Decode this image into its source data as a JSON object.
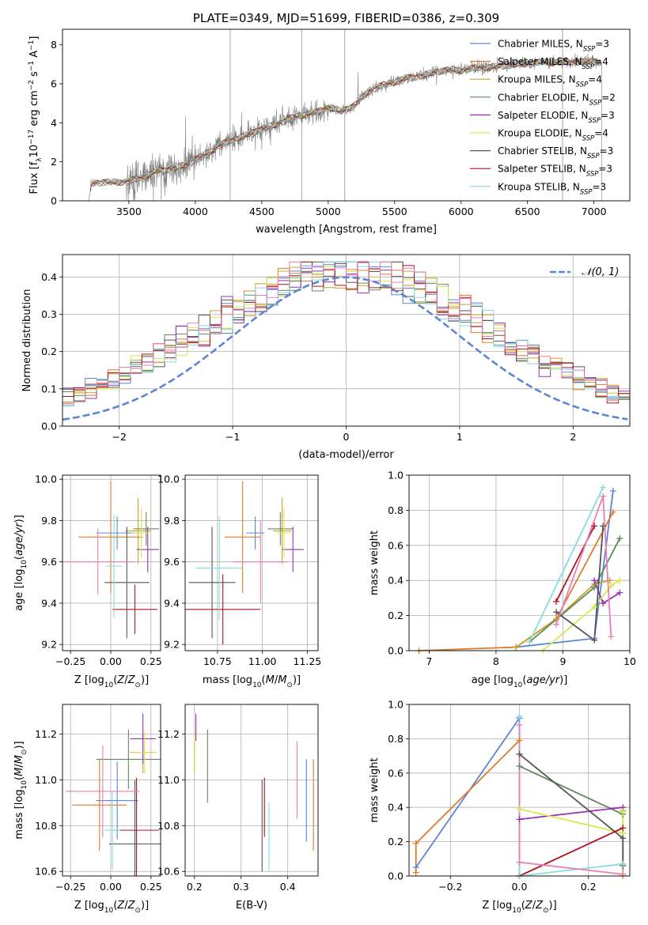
{
  "colors": {
    "Chabrier MILES": "#5b86d6",
    "Salpeter MILES": "#e07b29",
    "Kroupa MILES": "#c9a227",
    "Chabrier ELODIE": "#5e8a5e",
    "Salpeter ELODIE": "#9b2fb0",
    "Kroupa ELODIE": "#d8e650",
    "Chabrier STELIB": "#555555",
    "Salpeter STELIB": "#b0141c",
    "Kroupa STELIB": "#86dce0",
    "pink": "#e77fb5",
    "gauss": "#5b86d6"
  },
  "chart_data": [
    {
      "id": "spectrum",
      "type": "line",
      "title": "PLATE=0349, MJD=51699, FIBERID=0386, z=0.309",
      "xlabel": "wavelength [Angstrom, rest frame]",
      "ylabel": "Flux [f_λ 10^-17 erg cm^-2 s^-1 A^-1]",
      "xlim": [
        3000,
        7270
      ],
      "ylim": [
        0,
        8.8
      ],
      "xticks": [
        3500,
        4000,
        4500,
        5000,
        5500,
        6000,
        6500,
        7000
      ],
      "yticks": [
        0,
        2,
        4,
        6,
        8
      ],
      "data_anchor": [
        [
          3200,
          0.0
        ],
        [
          3215,
          0.9
        ],
        [
          3300,
          0.95
        ],
        [
          3400,
          0.95
        ],
        [
          3500,
          1.0
        ],
        [
          3600,
          1.2
        ],
        [
          3700,
          1.5
        ],
        [
          3800,
          1.6
        ],
        [
          3900,
          1.8
        ],
        [
          3950,
          1.9
        ],
        [
          4000,
          2.1
        ],
        [
          4100,
          2.5
        ],
        [
          4200,
          2.9
        ],
        [
          4300,
          3.2
        ],
        [
          4400,
          3.4
        ],
        [
          4500,
          3.7
        ],
        [
          4600,
          3.9
        ],
        [
          4700,
          4.2
        ],
        [
          4800,
          4.4
        ],
        [
          4900,
          4.5
        ],
        [
          5000,
          4.8
        ],
        [
          5100,
          4.6
        ],
        [
          5200,
          4.9
        ],
        [
          5300,
          5.6
        ],
        [
          5400,
          5.9
        ],
        [
          5500,
          6.1
        ],
        [
          5600,
          6.3
        ],
        [
          5700,
          6.4
        ],
        [
          5800,
          6.6
        ],
        [
          5900,
          6.7
        ],
        [
          6000,
          6.7
        ],
        [
          6100,
          6.8
        ],
        [
          6200,
          6.85
        ],
        [
          6300,
          6.9
        ],
        [
          6400,
          7.0
        ],
        [
          6500,
          7.05
        ],
        [
          6600,
          7.1
        ],
        [
          6700,
          7.1
        ],
        [
          6800,
          7.1
        ],
        [
          6900,
          7.15
        ],
        [
          7000,
          7.15
        ],
        [
          7060,
          7.1
        ],
        [
          7060,
          0.0
        ]
      ],
      "legend": [
        {
          "name": "Chabrier MILES, N",
          "sub": "SSP",
          "tail": "=3",
          "color": "#5b86d6"
        },
        {
          "name": "Salpeter MILES, N",
          "sub": "SSP",
          "tail": "=4",
          "color": "#e07b29"
        },
        {
          "name": "Kroupa MILES, N",
          "sub": "SSP",
          "tail": "=4",
          "color": "#c9a227"
        },
        {
          "name": "Chabrier ELODIE, N",
          "sub": "SSP",
          "tail": "=2",
          "color": "#5e8a5e"
        },
        {
          "name": "Salpeter ELODIE, N",
          "sub": "SSP",
          "tail": "=3",
          "color": "#9b2fb0"
        },
        {
          "name": "Kroupa ELODIE, N",
          "sub": "SSP",
          "tail": "=4",
          "color": "#d8e650"
        },
        {
          "name": "Chabrier STELIB, N",
          "sub": "SSP",
          "tail": "=3",
          "color": "#555555"
        },
        {
          "name": "Salpeter STELIB, N",
          "sub": "SSP",
          "tail": "=3",
          "color": "#b0141c"
        },
        {
          "name": "Kroupa STELIB, N",
          "sub": "SSP",
          "tail": "=3",
          "color": "#86dce0"
        }
      ],
      "legend_loc": "right"
    },
    {
      "id": "residuals",
      "type": "line",
      "xlabel": "(data-model)/error",
      "ylabel": "Normed distribution",
      "xlim": [
        -2.5,
        2.5
      ],
      "ylim": [
        0,
        0.46
      ],
      "xticks": [
        -2,
        -1,
        0,
        1,
        2
      ],
      "yticks": [
        0.0,
        0.1,
        0.2,
        0.3,
        0.4
      ],
      "grid": true,
      "bins": 50,
      "legend": [
        {
          "name": "𝒩(0, 1)",
          "color": "#5b86d6",
          "dashed": true
        }
      ],
      "legend_loc": "top-right"
    },
    {
      "id": "age_vs_Z",
      "type": "scatter",
      "xlabel": "Z [log10(Z/Z⊙)]",
      "ylabel": "age [log10(age/yr)]",
      "xlim": [
        -0.3,
        0.31
      ],
      "ylim": [
        9.17,
        10.02
      ],
      "xticks": [
        -0.25,
        0.0,
        0.25
      ],
      "yticks": [
        9.2,
        9.4,
        9.6,
        9.8,
        10.0
      ],
      "grid": true,
      "points": [
        {
          "x": 0.04,
          "y": 9.74,
          "xerr": 0.13,
          "yerr": 0.08,
          "color": "#5b86d6"
        },
        {
          "x": 0.0,
          "y": 9.72,
          "xerr": 0.2,
          "yerr": 0.27,
          "color": "#e07b29"
        },
        {
          "x": 0.17,
          "y": 9.75,
          "xerr": 0.08,
          "yerr": 0.16,
          "color": "#c9a227"
        },
        {
          "x": 0.22,
          "y": 9.76,
          "xerr": 0.08,
          "yerr": 0.08,
          "color": "#5e8a5e"
        },
        {
          "x": 0.23,
          "y": 9.66,
          "xerr": 0.07,
          "yerr": 0.11,
          "color": "#9b2fb0"
        },
        {
          "x": 0.19,
          "y": 9.74,
          "xerr": 0.06,
          "yerr": 0.12,
          "color": "#d8e650"
        },
        {
          "x": 0.1,
          "y": 9.5,
          "xerr": 0.14,
          "yerr": 0.27,
          "color": "#555555"
        },
        {
          "x": 0.15,
          "y": 9.37,
          "xerr": 0.14,
          "yerr": 0.12,
          "color": "#b0141c"
        },
        {
          "x": 0.02,
          "y": 9.58,
          "xerr": 0.05,
          "yerr": 0.25,
          "color": "#86dce0"
        },
        {
          "x": -0.08,
          "y": 9.6,
          "xerr": 0.23,
          "yerr": 0.16,
          "color": "#e77fb5"
        }
      ]
    },
    {
      "id": "age_vs_mass",
      "type": "scatter",
      "xlabel": "mass [log10(M/M⊙)]",
      "ylabel": "",
      "xlim": [
        10.57,
        11.31
      ],
      "ylim": [
        9.17,
        10.02
      ],
      "xticks": [
        10.75,
        11.0,
        11.25
      ],
      "yticks": [
        9.2,
        9.4,
        9.6,
        9.8,
        10.0
      ],
      "grid": true,
      "points": [
        {
          "x": 10.96,
          "y": 9.74,
          "xerr": 0.05,
          "yerr": 0.08,
          "color": "#5b86d6"
        },
        {
          "x": 10.89,
          "y": 9.72,
          "xerr": 0.1,
          "yerr": 0.27,
          "color": "#e07b29"
        },
        {
          "x": 11.11,
          "y": 9.75,
          "xerr": 0.05,
          "yerr": 0.16,
          "color": "#c9a227"
        },
        {
          "x": 11.1,
          "y": 9.76,
          "xerr": 0.07,
          "yerr": 0.08,
          "color": "#5e8a5e"
        },
        {
          "x": 11.17,
          "y": 9.66,
          "xerr": 0.06,
          "yerr": 0.11,
          "color": "#9b2fb0"
        },
        {
          "x": 11.12,
          "y": 9.74,
          "xerr": 0.04,
          "yerr": 0.12,
          "color": "#d8e650"
        },
        {
          "x": 10.72,
          "y": 9.5,
          "xerr": 0.13,
          "yerr": 0.27,
          "color": "#555555"
        },
        {
          "x": 10.78,
          "y": 9.37,
          "xerr": 0.21,
          "yerr": 0.17,
          "color": "#b0141c"
        },
        {
          "x": 10.76,
          "y": 9.57,
          "xerr": 0.13,
          "yerr": 0.25,
          "color": "#86dce0"
        },
        {
          "x": 10.99,
          "y": 9.6,
          "xerr": 0.15,
          "yerr": 0.2,
          "color": "#e77fb5"
        }
      ]
    },
    {
      "id": "mass_weight_vs_age",
      "type": "line",
      "xlabel": "age [log10(age/yr)]",
      "ylabel": "mass weight",
      "xlim": [
        6.7,
        10.0
      ],
      "ylim": [
        0.0,
        1.0
      ],
      "xticks": [
        7,
        8,
        9,
        10
      ],
      "yticks": [
        0.0,
        0.2,
        0.4,
        0.6,
        0.8,
        1.0
      ],
      "grid": true,
      "series": [
        {
          "color": "#5b86d6",
          "x": [
            8.3,
            9.47,
            9.75
          ],
          "y": [
            0.02,
            0.07,
            0.91
          ]
        },
        {
          "color": "#e07b29",
          "x": [
            6.85,
            8.3,
            8.9,
            9.75
          ],
          "y": [
            0.0,
            0.02,
            0.18,
            0.79
          ]
        },
        {
          "color": "#c9a227",
          "x": [
            8.3,
            8.9,
            9.47,
            9.7
          ],
          "y": [
            0.02,
            0.18,
            0.38,
            0.4
          ]
        },
        {
          "color": "#5e8a5e",
          "x": [
            8.5,
            9.47,
            9.85
          ],
          "y": [
            0.05,
            0.36,
            0.64
          ]
        },
        {
          "color": "#9b2fb0",
          "x": [
            9.47,
            9.6,
            9.85
          ],
          "y": [
            0.4,
            0.27,
            0.33
          ]
        },
        {
          "color": "#d8e650",
          "x": [
            8.7,
            9.47,
            9.72,
            9.85
          ],
          "y": [
            0.0,
            0.25,
            0.37,
            0.4
          ]
        },
        {
          "color": "#555555",
          "x": [
            8.9,
            9.47,
            9.6
          ],
          "y": [
            0.22,
            0.06,
            0.71
          ]
        },
        {
          "color": "#b0141c",
          "x": [
            8.9,
            9.47
          ],
          "y": [
            0.28,
            0.71
          ]
        },
        {
          "color": "#86dce0",
          "x": [
            8.5,
            9.6
          ],
          "y": [
            0.05,
            0.93
          ]
        },
        {
          "color": "#e77fb5",
          "x": [
            8.9,
            9.6,
            9.72
          ],
          "y": [
            0.15,
            0.88,
            0.08
          ]
        }
      ]
    },
    {
      "id": "mass_vs_Z",
      "type": "scatter",
      "xlabel": "Z [log10(Z/Z⊙)]",
      "ylabel": "mass [log10(M/M⊙)]",
      "xlim": [
        -0.3,
        0.31
      ],
      "ylim": [
        10.58,
        11.33
      ],
      "xticks": [
        -0.25,
        0.0,
        0.25
      ],
      "yticks": [
        10.6,
        10.8,
        11.0,
        11.2
      ],
      "grid": true,
      "points": [
        {
          "x": 0.04,
          "y": 10.91,
          "xerr": 0.13,
          "yerr": 0.17,
          "color": "#5b86d6"
        },
        {
          "x": -0.07,
          "y": 10.89,
          "xerr": 0.17,
          "yerr": 0.2,
          "color": "#e07b29"
        },
        {
          "x": 0.2,
          "y": 11.12,
          "xerr": 0.08,
          "yerr": 0.09,
          "color": "#c9a227"
        },
        {
          "x": 0.11,
          "y": 11.09,
          "xerr": 0.2,
          "yerr": 0.13,
          "color": "#5e8a5e"
        },
        {
          "x": 0.2,
          "y": 11.18,
          "xerr": 0.08,
          "yerr": 0.11,
          "color": "#9b2fb0"
        },
        {
          "x": 0.21,
          "y": 11.12,
          "xerr": 0.08,
          "yerr": 0.09,
          "color": "#d8e650"
        },
        {
          "x": 0.15,
          "y": 10.72,
          "xerr": 0.16,
          "yerr": 0.28,
          "color": "#555555"
        },
        {
          "x": 0.16,
          "y": 10.78,
          "xerr": 0.14,
          "yerr": 0.23,
          "color": "#b0141c"
        },
        {
          "x": 0.01,
          "y": 10.78,
          "xerr": 0.05,
          "yerr": 0.17,
          "color": "#86dce0"
        },
        {
          "x": -0.05,
          "y": 10.95,
          "xerr": 0.23,
          "yerr": 0.2,
          "color": "#e77fb5"
        }
      ]
    },
    {
      "id": "mass_vs_ebv",
      "type": "scatter",
      "xlabel": "E(B-V)",
      "ylabel": "",
      "xlim": [
        0.18,
        0.465
      ],
      "ylim": [
        10.58,
        11.33
      ],
      "xticks": [
        0.2,
        0.3,
        0.4
      ],
      "yticks": [
        10.6,
        10.8,
        11.0,
        11.2
      ],
      "grid": true,
      "points": [
        {
          "x": 0.44,
          "y": 10.91,
          "yerr": 0.18,
          "color": "#5b86d6"
        },
        {
          "x": 0.455,
          "y": 10.89,
          "yerr": 0.2,
          "color": "#e07b29"
        },
        {
          "x": 0.2,
          "y": 11.12,
          "yerr": 0.09,
          "color": "#c9a227"
        },
        {
          "x": 0.228,
          "y": 11.06,
          "yerr": 0.16,
          "color": "#5e8a5e"
        },
        {
          "x": 0.203,
          "y": 11.23,
          "yerr": 0.06,
          "color": "#9b2fb0"
        },
        {
          "x": 0.2,
          "y": 11.12,
          "yerr": 0.09,
          "color": "#d8e650"
        },
        {
          "x": 0.345,
          "y": 10.8,
          "yerr": 0.2,
          "color": "#555555"
        },
        {
          "x": 0.35,
          "y": 10.88,
          "yerr": 0.13,
          "color": "#b0141c"
        },
        {
          "x": 0.36,
          "y": 10.75,
          "yerr": 0.15,
          "color": "#86dce0"
        },
        {
          "x": 0.42,
          "y": 11.0,
          "yerr": 0.17,
          "color": "#e77fb5"
        }
      ]
    },
    {
      "id": "mass_weight_vs_Z",
      "type": "line",
      "xlabel": "Z [log10(Z/Z⊙)]",
      "ylabel": "mass weight",
      "xlim": [
        -0.32,
        0.32
      ],
      "ylim": [
        0.0,
        1.0
      ],
      "xticks": [
        -0.2,
        0.0,
        0.2
      ],
      "yticks": [
        0.0,
        0.2,
        0.4,
        0.6,
        0.8,
        1.0
      ],
      "grid": true,
      "series": [
        {
          "color": "#5b86d6",
          "x": [
            -0.3,
            0.0,
            0.0
          ],
          "y": [
            0.05,
            0.92,
            0.0
          ]
        },
        {
          "color": "#e07b29",
          "x": [
            -0.3,
            -0.3,
            0.0,
            0.0
          ],
          "y": [
            0.02,
            0.19,
            0.79,
            0.0
          ]
        },
        {
          "color": "#c9a227",
          "x": [
            0.3,
            0.3,
            0.3
          ],
          "y": [
            0.0,
            0.25,
            0.38
          ]
        },
        {
          "color": "#5e8a5e",
          "x": [
            0.0,
            0.3
          ],
          "y": [
            0.64,
            0.36
          ]
        },
        {
          "color": "#9b2fb0",
          "x": [
            0.0,
            0.3
          ],
          "y": [
            0.33,
            0.4
          ]
        },
        {
          "color": "#d8e650",
          "x": [
            0.0,
            0.3,
            0.3
          ],
          "y": [
            0.39,
            0.25,
            0.37
          ]
        },
        {
          "color": "#555555",
          "x": [
            0.0,
            0.3,
            0.3
          ],
          "y": [
            0.71,
            0.22,
            0.06
          ]
        },
        {
          "color": "#b0141c",
          "x": [
            0.0,
            0.3
          ],
          "y": [
            0.0,
            0.28
          ]
        },
        {
          "color": "#86dce0",
          "x": [
            0.0,
            0.0,
            0.3
          ],
          "y": [
            0.93,
            0.0,
            0.07
          ]
        },
        {
          "color": "#e77fb5",
          "x": [
            0.0,
            0.0,
            0.3
          ],
          "y": [
            0.88,
            0.08,
            0.01
          ]
        }
      ]
    }
  ]
}
